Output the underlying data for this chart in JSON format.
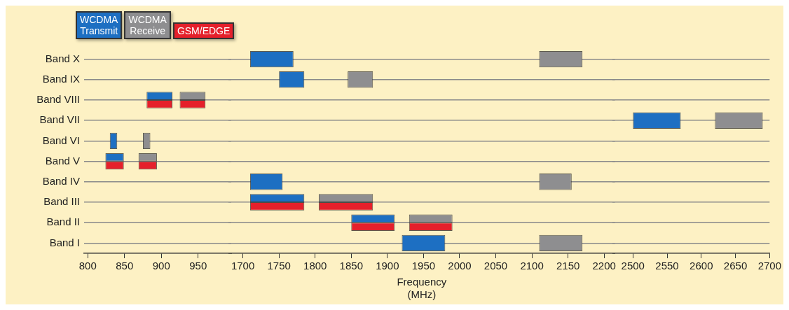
{
  "chart_data": [
    {
      "type": "bar",
      "orientation": "horizontal",
      "categories": [
        "Band X",
        "Band IX",
        "Band VIII",
        "Band VII",
        "Band VI",
        "Band V",
        "Band IV",
        "Band III",
        "Band II",
        "Band I"
      ],
      "xlim": [
        795,
        995
      ],
      "xticks": [
        800,
        850,
        900,
        950
      ],
      "grid": "y",
      "legend": "top left",
      "series": [
        {
          "name": "WCDMA\nTransmit",
          "color": "#1d6fc2",
          "base": [
            null,
            null,
            880,
            null,
            830,
            824,
            null,
            null,
            null,
            null
          ],
          "values": [
            null,
            null,
            35,
            null,
            10,
            25,
            null,
            null,
            null,
            null
          ]
        },
        {
          "name": "WCDMA\nReceive",
          "color": "#8e8e90",
          "base": [
            null,
            null,
            925,
            null,
            875,
            869,
            null,
            null,
            null,
            null
          ],
          "values": [
            null,
            null,
            35,
            null,
            10,
            25,
            null,
            null,
            null,
            null
          ]
        },
        {
          "name": "GSM/EDGE",
          "color": "#e5202b",
          "base": [
            null,
            null,
            880,
            null,
            null,
            824,
            null,
            null,
            null,
            null
          ],
          "values": [
            null,
            null,
            35,
            null,
            null,
            25,
            null,
            null,
            null,
            null
          ]
        },
        {
          "color": "#e5202b",
          "base": [
            null,
            null,
            925,
            null,
            null,
            869,
            null,
            null,
            null,
            null
          ],
          "values": [
            null,
            null,
            35,
            null,
            null,
            25,
            null,
            null,
            null,
            null
          ]
        }
      ]
    },
    {
      "type": "bar",
      "orientation": "horizontal",
      "categories": [
        null,
        null,
        null,
        null,
        null,
        null,
        null,
        null,
        null,
        null
      ],
      "xlim": [
        1680,
        2215
      ],
      "xticks": [
        1700,
        1750,
        1800,
        1850,
        1900,
        1950,
        2000,
        2050,
        2100,
        2150,
        2200
      ],
      "grid": "y",
      "tick_labels": "x",
      "xlabel": "Frequency\n(MHz)",
      "series": [
        {
          "color": "#1d6fc2",
          "base": [
            1710,
            1750,
            null,
            null,
            null,
            null,
            1710,
            1710,
            1850,
            1920
          ],
          "values": [
            60,
            35,
            null,
            null,
            null,
            null,
            45,
            75,
            60,
            60
          ]
        },
        {
          "color": "#8e8e90",
          "base": [
            2110,
            1845,
            null,
            null,
            null,
            null,
            2110,
            1805,
            1930,
            2110
          ],
          "values": [
            60,
            35,
            null,
            null,
            null,
            null,
            45,
            75,
            60,
            60
          ]
        },
        {
          "color": "#e5202b",
          "base": [
            null,
            null,
            null,
            null,
            null,
            null,
            null,
            1710,
            1850,
            null
          ],
          "values": [
            null,
            null,
            null,
            null,
            null,
            null,
            null,
            75,
            60,
            null
          ]
        },
        {
          "color": "#e5202b",
          "base": [
            null,
            null,
            null,
            null,
            null,
            null,
            null,
            1805,
            1930,
            null
          ],
          "values": [
            null,
            null,
            null,
            null,
            null,
            null,
            null,
            75,
            60,
            null
          ]
        }
      ]
    },
    {
      "type": "bar",
      "orientation": "horizontal",
      "categories": [
        null,
        null,
        null,
        null,
        null,
        null,
        null,
        null,
        null,
        null
      ],
      "xlim": [
        2470,
        2700
      ],
      "xticks": [
        2500,
        2550,
        2600,
        2650,
        2700
      ],
      "grid": "y",
      "tick_labels": "x",
      "series": [
        {
          "color": "#1d6fc2",
          "base": [
            null,
            null,
            null,
            2500,
            null,
            null,
            null,
            null,
            null,
            null
          ],
          "values": [
            null,
            null,
            null,
            70,
            null,
            null,
            null,
            null,
            null,
            null
          ]
        },
        {
          "color": "#8e8e90",
          "base": [
            null,
            null,
            null,
            2620,
            null,
            null,
            null,
            null,
            null,
            null
          ],
          "values": [
            null,
            null,
            null,
            70,
            null,
            null,
            null,
            null,
            null,
            null
          ]
        }
      ]
    }
  ]
}
